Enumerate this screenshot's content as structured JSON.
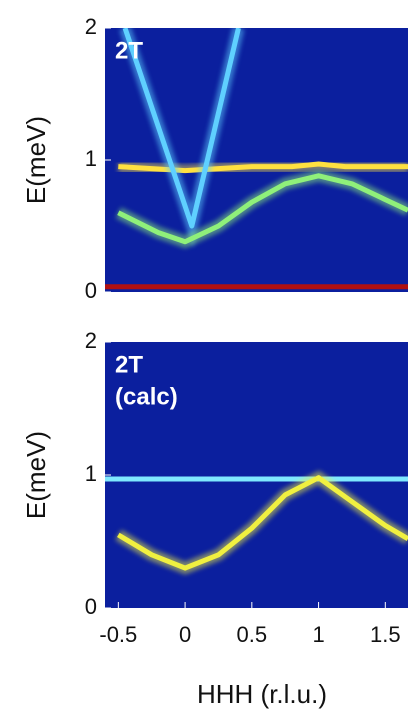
{
  "chart_data": [
    {
      "type": "line",
      "annotation": [
        "2T"
      ],
      "ylabel": "E(meV)",
      "xlim": [
        -0.6,
        1.67
      ],
      "ylim": [
        0,
        2
      ],
      "yticks": [
        0,
        1,
        2
      ],
      "background": "#0b1f9e",
      "series": [
        {
          "color": "#ffe040",
          "x": [
            -0.5,
            0,
            0.5,
            0.8,
            1,
            1.2,
            1.5,
            1.67
          ],
          "values": [
            0.95,
            0.92,
            0.95,
            0.95,
            0.97,
            0.95,
            0.95,
            0.95
          ]
        },
        {
          "color": "#5fd0ff",
          "x": [
            -0.45,
            0.05,
            0.4
          ],
          "values": [
            2,
            0.5,
            2
          ]
        },
        {
          "color": "#8ff07a",
          "x": [
            -0.5,
            -0.2,
            0,
            0.25,
            0.5,
            0.75,
            1,
            1.25,
            1.5,
            1.67
          ],
          "values": [
            0.6,
            0.45,
            0.38,
            0.5,
            0.68,
            0.82,
            0.88,
            0.82,
            0.7,
            0.62
          ]
        },
        {
          "color": "#b01010",
          "x": [
            -0.6,
            0,
            0.5,
            1,
            1.5,
            1.67
          ],
          "values": [
            0.04,
            0.04,
            0.04,
            0.04,
            0.04,
            0.04
          ]
        }
      ]
    },
    {
      "type": "line",
      "annotation": [
        "2T",
        "(calc)"
      ],
      "ylabel": "E(meV)",
      "xlabel": "HHH (r.l.u.)",
      "xlim": [
        -0.6,
        1.67
      ],
      "ylim": [
        0,
        2
      ],
      "yticks": [
        0,
        1,
        2
      ],
      "xticks": [
        -0.5,
        0,
        0.5,
        1,
        1.5
      ],
      "background": "#0b1f9e",
      "series": [
        {
          "color": "#7fe8ff",
          "x": [
            -0.6,
            0,
            0.5,
            1,
            1.5,
            1.67
          ],
          "values": [
            0.97,
            0.97,
            0.97,
            0.97,
            0.97,
            0.97
          ]
        },
        {
          "color": "#f0f040",
          "x": [
            -0.5,
            -0.25,
            0,
            0.25,
            0.5,
            0.75,
            1,
            1.25,
            1.5,
            1.67
          ],
          "values": [
            0.55,
            0.4,
            0.3,
            0.4,
            0.6,
            0.85,
            0.98,
            0.8,
            0.62,
            0.52
          ]
        }
      ]
    }
  ]
}
